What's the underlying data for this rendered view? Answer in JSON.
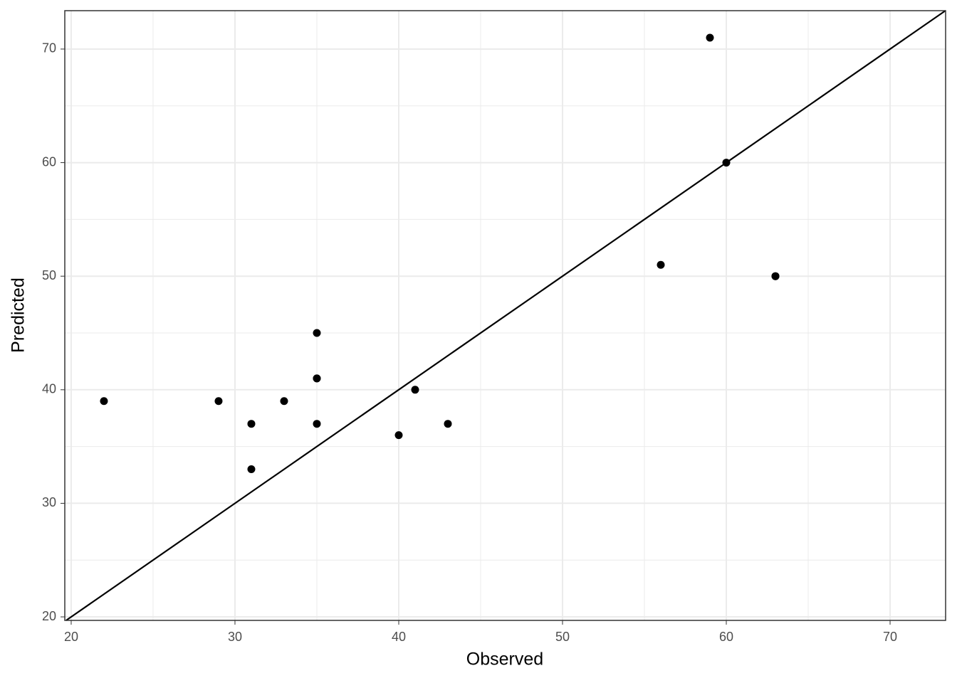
{
  "chart_data": {
    "type": "scatter",
    "x_label": "Observed",
    "y_label": "Predicted",
    "series": [
      {
        "color": "#000000",
        "x": [
          22,
          29,
          31,
          31,
          33,
          35,
          35,
          35,
          35,
          40,
          41,
          43,
          56,
          59,
          60,
          63,
          63
        ],
        "values": [
          39,
          39,
          37,
          33,
          39,
          45,
          41,
          41,
          37,
          36,
          40,
          37,
          51,
          71,
          60,
          50,
          50
        ]
      }
    ],
    "xlim": [
      19.61,
      73.39
    ],
    "ylim": [
      19.69,
      73.38
    ],
    "xticks": [
      20,
      30,
      40,
      50,
      60,
      70
    ],
    "yticks": [
      20,
      30,
      40,
      50,
      60,
      70
    ],
    "grid": true,
    "minor_grid": true,
    "identity_line": true
  }
}
